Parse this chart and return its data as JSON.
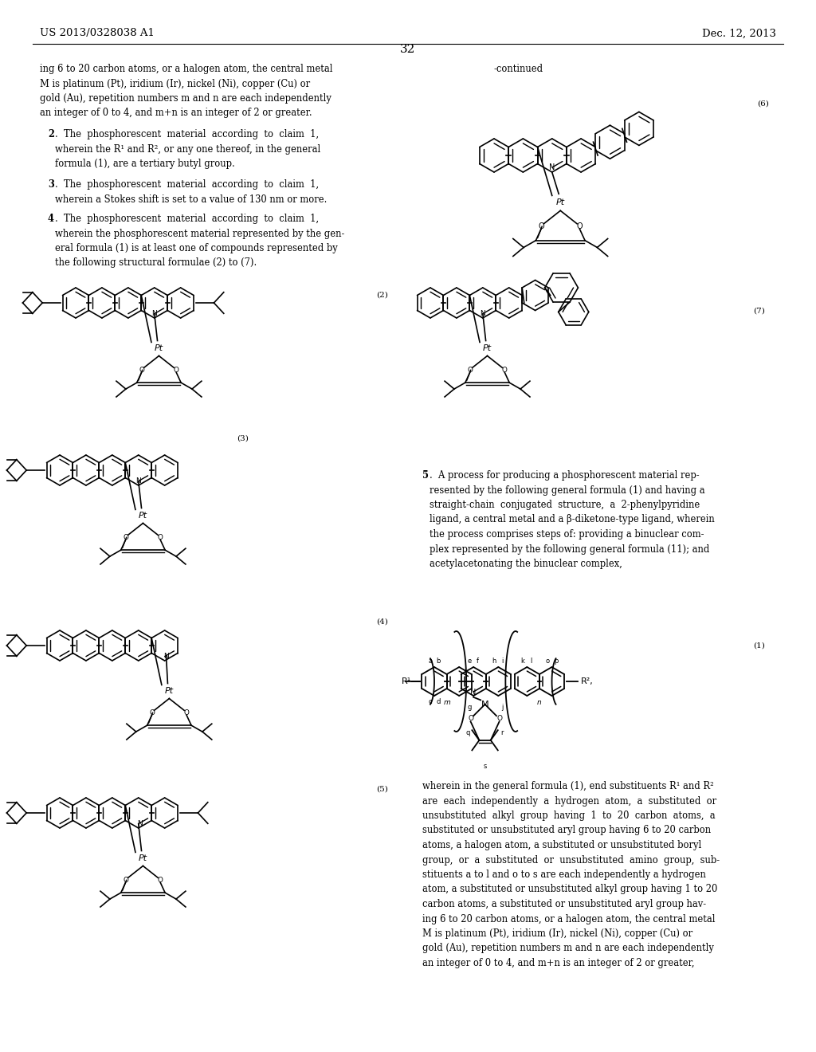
{
  "bg": "#ffffff",
  "header_left": "US 2013/0328038 A1",
  "header_right": "Dec. 12, 2013",
  "page_num": "32",
  "continued": "-continued",
  "text_color": "#000000"
}
